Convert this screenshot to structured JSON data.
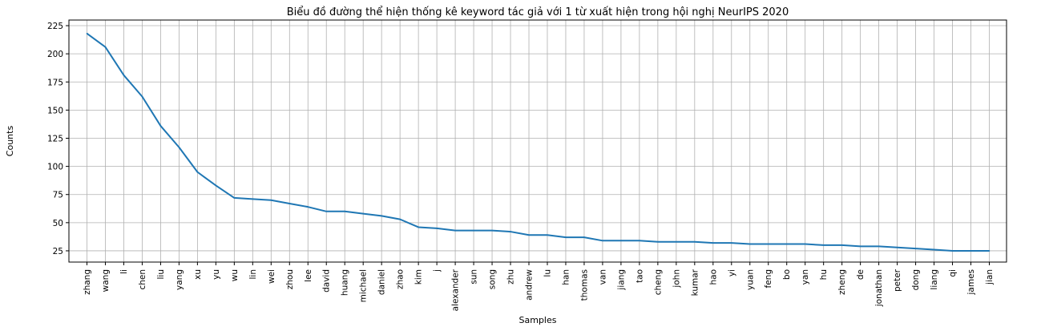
{
  "chart_data": {
    "type": "line",
    "title": "Biểu đồ đường thể hiện thống kê keyword tác giả với 1 từ xuất hiện trong hội nghị NeurIPS 2020",
    "xlabel": "Samples",
    "ylabel": "Counts",
    "ylim": [
      15,
      230
    ],
    "yticks": [
      25,
      50,
      75,
      100,
      125,
      150,
      175,
      200,
      225
    ],
    "grid": true,
    "line_color": "#1f77b4",
    "grid_color": "#b0b0b0",
    "categories": [
      "zhang",
      "wang",
      "li",
      "chen",
      "liu",
      "yang",
      "xu",
      "yu",
      "wu",
      "lin",
      "wei",
      "zhou",
      "lee",
      "david",
      "huang",
      "michael",
      "daniel",
      "zhao",
      "kim",
      "j",
      "alexander",
      "sun",
      "song",
      "zhu",
      "andrew",
      "lu",
      "han",
      "thomas",
      "van",
      "jiang",
      "tao",
      "cheng",
      "john",
      "kumar",
      "hao",
      "yi",
      "yuan",
      "feng",
      "bo",
      "yan",
      "hu",
      "zheng",
      "de",
      "jonathan",
      "peter",
      "dong",
      "liang",
      "qi",
      "james",
      "jian"
    ],
    "values": [
      218,
      206,
      181,
      162,
      136,
      117,
      95,
      83,
      72,
      71,
      70,
      67,
      64,
      60,
      60,
      58,
      56,
      53,
      46,
      45,
      43,
      43,
      43,
      42,
      39,
      39,
      37,
      37,
      34,
      34,
      34,
      33,
      33,
      33,
      32,
      32,
      31,
      31,
      31,
      31,
      30,
      30,
      29,
      29,
      28,
      27,
      26,
      25,
      25,
      25
    ]
  }
}
